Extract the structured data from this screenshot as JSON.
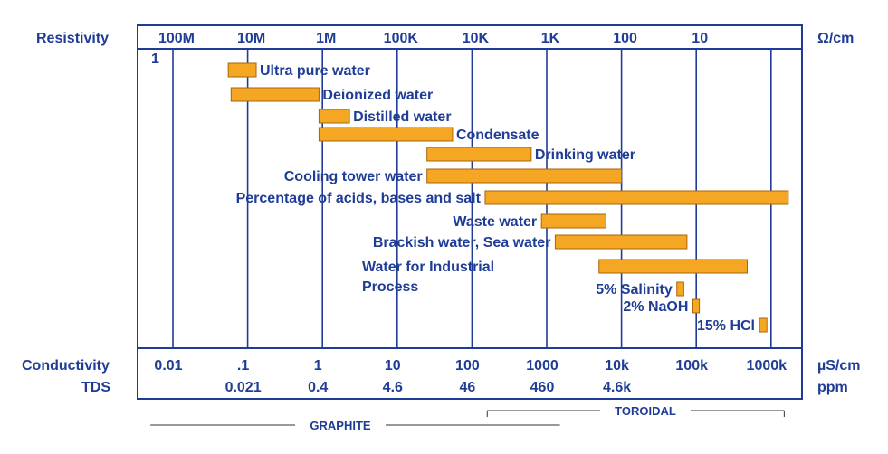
{
  "chart_data": {
    "type": "bar",
    "orientation": "horizontal-range",
    "x_scale": "log",
    "x_unit": "µS/cm",
    "colors": {
      "bar": "#f5a623",
      "bar_stroke": "#a8660a",
      "frame": "#1f3c96",
      "text": "#1f3c96"
    },
    "top_axis": {
      "label": "Resistivity",
      "unit": "Ω/cm",
      "ticks": [
        {
          "label": "100M",
          "x": 0.01
        },
        {
          "label": "10M",
          "x": 0.1
        },
        {
          "label": "1M",
          "x": 1
        },
        {
          "label": "100K",
          "x": 10
        },
        {
          "label": "10K",
          "x": 100
        },
        {
          "label": "1K",
          "x": 1000
        },
        {
          "label": "100",
          "x": 10000
        },
        {
          "label": "10",
          "x": 100000
        }
      ]
    },
    "corner_label": "1",
    "bottom_axis": {
      "label": "Conductivity",
      "unit": "µS/cm",
      "ticks": [
        {
          "label": "0.01",
          "x": 0.01
        },
        {
          "label": ".1",
          "x": 0.1
        },
        {
          "label": "1",
          "x": 1
        },
        {
          "label": "10",
          "x": 10
        },
        {
          "label": "100",
          "x": 100
        },
        {
          "label": "1000",
          "x": 1000
        },
        {
          "label": "10k",
          "x": 10000
        },
        {
          "label": "100k",
          "x": 100000
        },
        {
          "label": "1000k",
          "x": 1000000
        }
      ]
    },
    "tds_axis": {
      "label": "TDS",
      "unit": "ppm",
      "ticks": [
        {
          "label": "0.021",
          "x": 0.1
        },
        {
          "label": "0.4",
          "x": 1
        },
        {
          "label": "4.6",
          "x": 10
        },
        {
          "label": "46",
          "x": 100
        },
        {
          "label": "460",
          "x": 1000
        },
        {
          "label": "4.6k",
          "x": 10000
        }
      ]
    },
    "ranges": [
      {
        "label": "GRAPHITE",
        "from": 0.005,
        "to": 1500
      },
      {
        "label": "TOROIDAL",
        "from": 160,
        "to": 1500000
      }
    ],
    "series": [
      {
        "label": "Ultra pure water",
        "from": 0.055,
        "to": 0.13
      },
      {
        "label": "Deionized water",
        "from": 0.06,
        "to": 0.9
      },
      {
        "label": "Distilled water",
        "from": 0.9,
        "to": 2.3
      },
      {
        "label": "Condensate",
        "from": 0.9,
        "to": 55
      },
      {
        "label": "Drinking water",
        "from": 25,
        "to": 620
      },
      {
        "label": "Cooling tower water",
        "from": 25,
        "to": 10000
      },
      {
        "label": "Percentage of acids, bases and salt",
        "from": 150,
        "to": 1700000
      },
      {
        "label": "Waste water",
        "from": 850,
        "to": 6200
      },
      {
        "label": "Brackish water, Sea water",
        "from": 1300,
        "to": 75000
      },
      {
        "label": "Water for Industrial Process",
        "from": 5000,
        "to": 480000
      },
      {
        "label": "5% Salinity",
        "from": 55000,
        "to": 68000
      },
      {
        "label": "2% NaOH",
        "from": 90000,
        "to": 110000
      },
      {
        "label": "15% HCl",
        "from": 700000,
        "to": 880000
      }
    ]
  }
}
